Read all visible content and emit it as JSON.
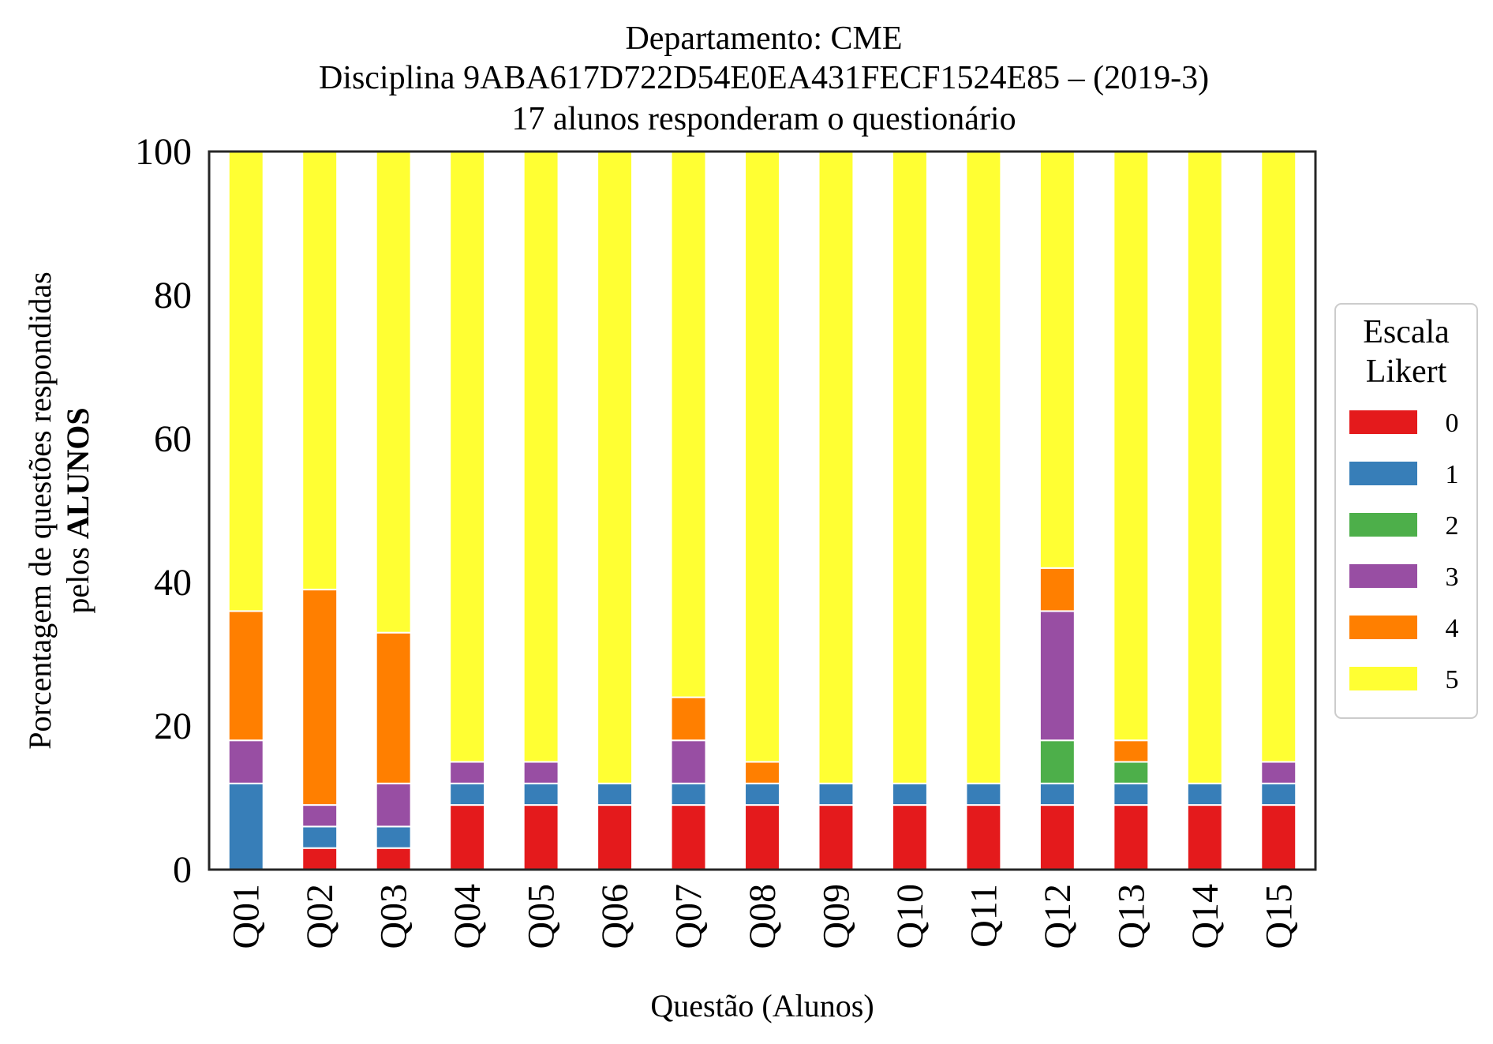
{
  "chart_data": {
    "type": "bar",
    "stacked": true,
    "title_lines": [
      "Departamento: CME",
      "Disciplina 9ABA617D722D54E0EA431FECF1524E85 – (2019-3)",
      "17 alunos responderam o questionário"
    ],
    "xlabel": "Questão (Alunos)",
    "ylabel_line1": "Porcentagem de questões respondidas",
    "ylabel_line2_prefix": "pelos ",
    "ylabel_line2_bold": "ALUNOS",
    "ylim": [
      0,
      100
    ],
    "yticks": [
      0,
      20,
      40,
      60,
      80,
      100
    ],
    "grid": false,
    "legend": {
      "title_line1": "Escala",
      "title_line2": "Likert",
      "placement": "center-right outside"
    },
    "categories": [
      "Q01",
      "Q02",
      "Q03",
      "Q04",
      "Q05",
      "Q06",
      "Q07",
      "Q08",
      "Q09",
      "Q10",
      "Q11",
      "Q12",
      "Q13",
      "Q14",
      "Q15"
    ],
    "series": [
      {
        "name": "0",
        "color": "#e41a1c",
        "values": [
          0,
          3,
          3,
          9,
          9,
          9,
          9,
          9,
          9,
          9,
          9,
          9,
          9,
          9,
          9
        ]
      },
      {
        "name": "1",
        "color": "#377eb8",
        "values": [
          12,
          3,
          3,
          3,
          3,
          3,
          3,
          3,
          3,
          3,
          3,
          3,
          3,
          3,
          3
        ]
      },
      {
        "name": "2",
        "color": "#4daf4a",
        "values": [
          0,
          0,
          0,
          0,
          0,
          0,
          0,
          0,
          0,
          0,
          0,
          6,
          3,
          0,
          0
        ]
      },
      {
        "name": "3",
        "color": "#984ea3",
        "values": [
          6,
          3,
          6,
          3,
          3,
          0,
          6,
          0,
          0,
          0,
          0,
          18,
          0,
          0,
          3
        ]
      },
      {
        "name": "4",
        "color": "#ff7f00",
        "values": [
          18,
          30,
          21,
          0,
          0,
          0,
          6,
          3,
          0,
          0,
          0,
          6,
          3,
          0,
          0
        ]
      },
      {
        "name": "5",
        "color": "#ffff33",
        "values": [
          64,
          61,
          67,
          85,
          85,
          88,
          76,
          85,
          88,
          88,
          88,
          58,
          82,
          88,
          85
        ]
      }
    ]
  }
}
